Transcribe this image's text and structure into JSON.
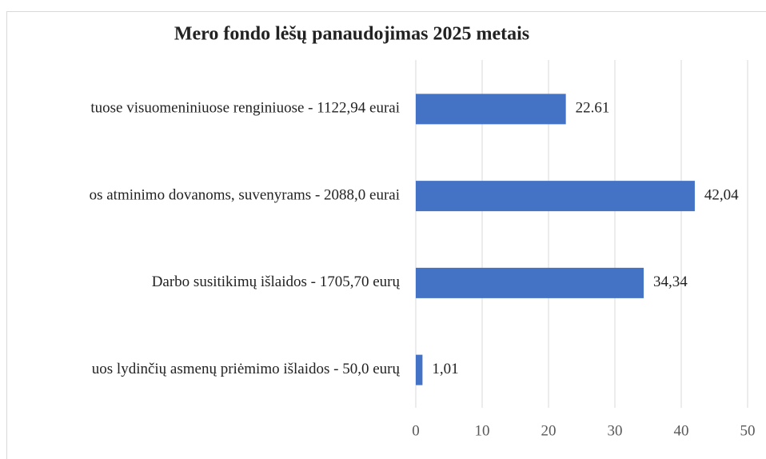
{
  "chart_data": {
    "type": "bar",
    "orientation": "horizontal",
    "title": "Mero fondo lėšų panaudojimas 2025 metais",
    "categories": [
      "tuose visuomeniniuose renginiuose - 1122,94 eurai",
      "os atminimo dovanoms, suvenyrams - 2088,0 eurai",
      "Darbo susitikimų išlaidos - 1705,70 eurų",
      "uos lydinčių asmenų priėmimo išlaidos - 50,0 eurų"
    ],
    "values": [
      22.61,
      42.04,
      34.34,
      1.01
    ],
    "value_labels": [
      "22.61",
      "42,04",
      "34,34",
      "1,01"
    ],
    "color": "#4472c4",
    "xlim": [
      0,
      50
    ],
    "xticks": [
      0,
      10,
      20,
      30,
      40,
      50
    ],
    "grid": true
  }
}
